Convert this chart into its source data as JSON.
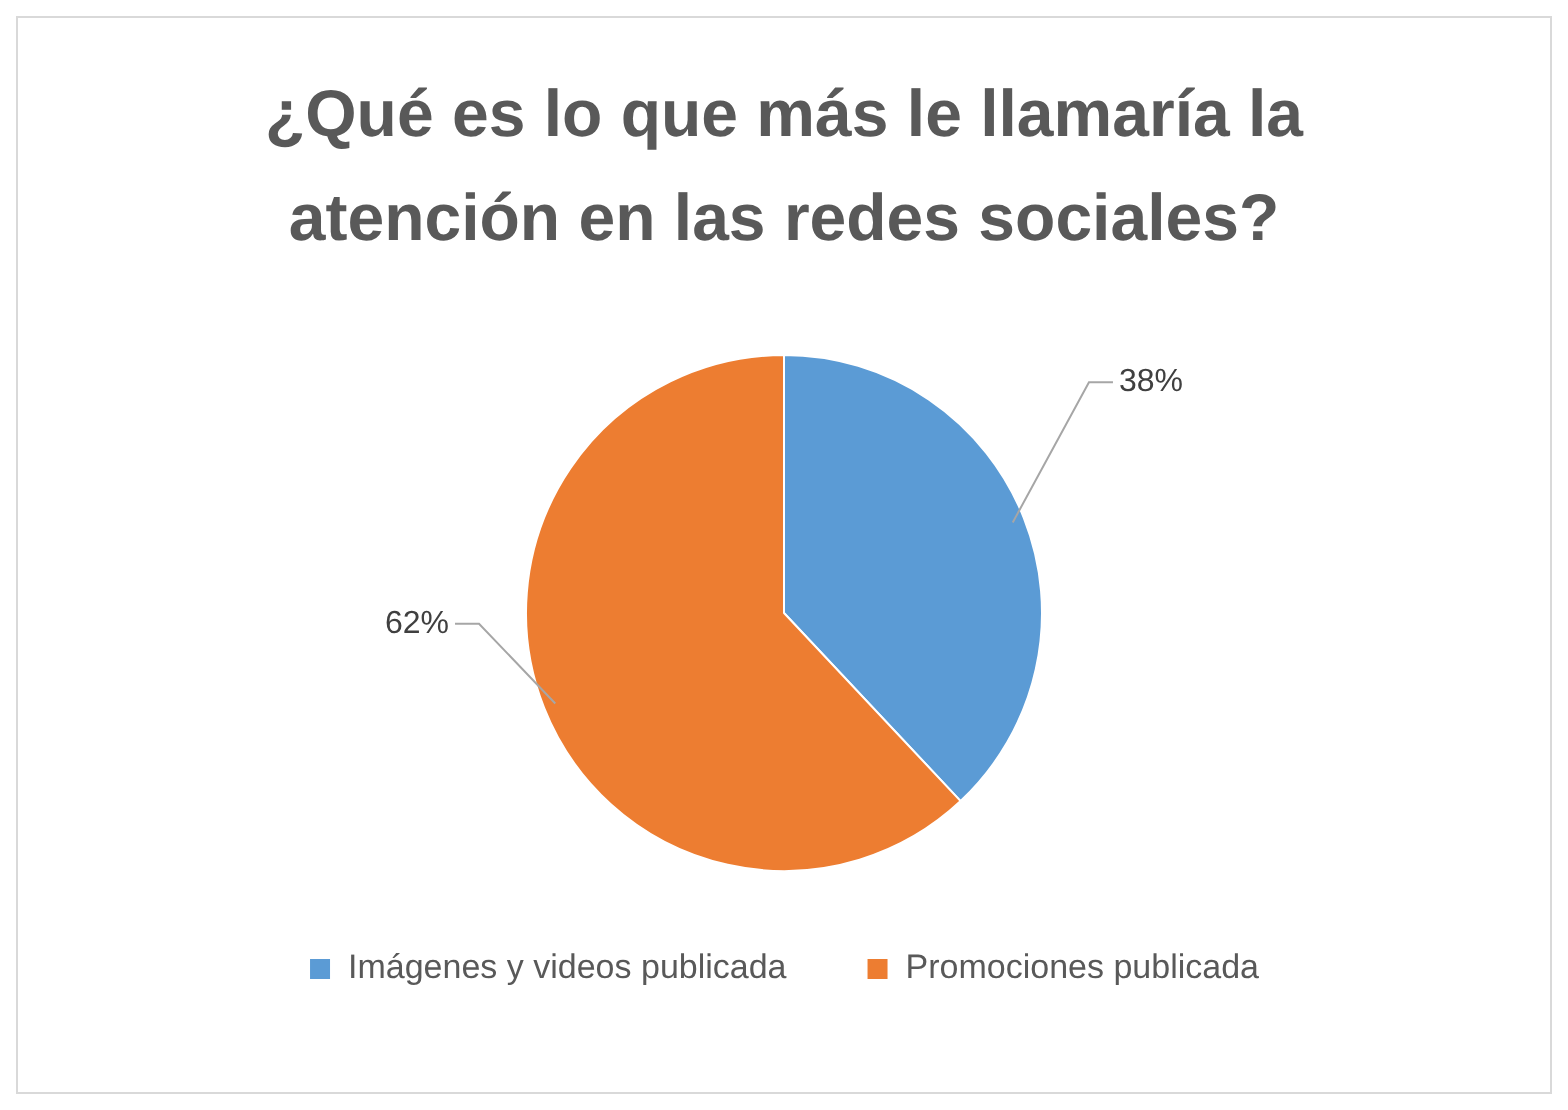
{
  "chart_data": {
    "type": "pie",
    "title": "¿Qué es lo que más le llamaría la atención en las redes sociales?",
    "categories": [
      "Imágenes y videos publicada",
      "Promociones publicada"
    ],
    "values": [
      38,
      62
    ],
    "colors": [
      "#5b9bd5",
      "#ed7d31"
    ],
    "value_labels": [
      "38%",
      "62%"
    ],
    "legend": "bottom"
  }
}
